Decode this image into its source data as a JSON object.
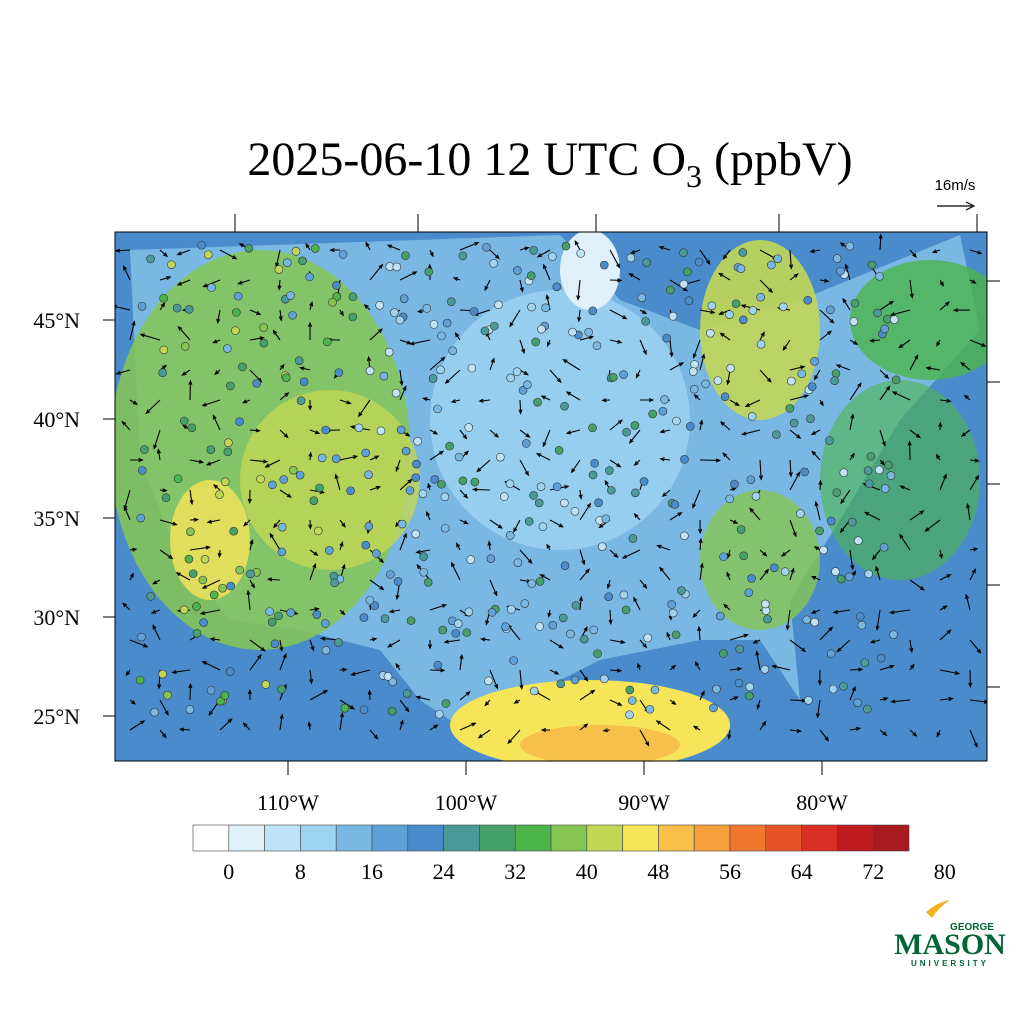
{
  "map": {
    "title": {
      "text": "2025-06-10 12 UTC O",
      "subscript": "3",
      "suffix": " (ppbV)"
    },
    "wind_reference": "16m/s",
    "lat_labels": [
      "45°N",
      "40°N",
      "35°N",
      "30°N",
      "25°N"
    ],
    "lon_labels": [
      "110°W",
      "100°W",
      "90°W",
      "80°W"
    ],
    "colorbar": {
      "labels": [
        "0",
        "8",
        "16",
        "24",
        "32",
        "40",
        "48",
        "56",
        "64",
        "72",
        "80"
      ],
      "colors": [
        "#ffffff",
        "#dff0fa",
        "#bfe3f6",
        "#9fd3f2",
        "#7ab8e4",
        "#5ea0d8",
        "#4a8ccb",
        "#4a9a9a",
        "#46a06a",
        "#4cb44a",
        "#86c552",
        "#c2d655",
        "#f7e559",
        "#f6c04a",
        "#f5a03c",
        "#f0782c",
        "#e65428",
        "#d92e24",
        "#c01d20",
        "#a81a1e",
        "#8c1519"
      ]
    },
    "logo": {
      "top": "GEORGE",
      "main": "MASON",
      "bottom": "UNIVERSITY"
    }
  }
}
